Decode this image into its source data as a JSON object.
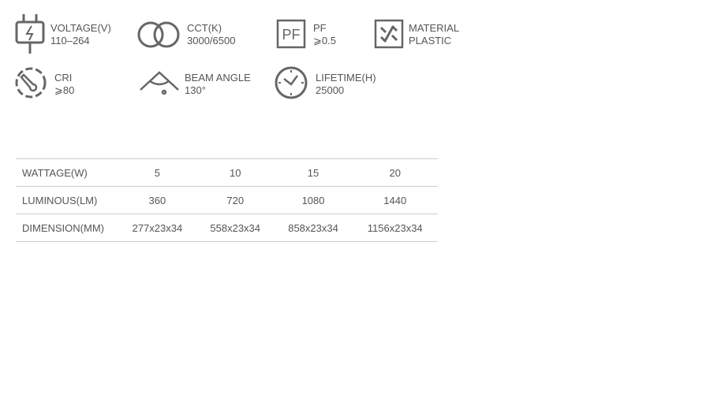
{
  "specs": [
    {
      "icon": "plug-icon",
      "label": "VOLTAGE(V)",
      "value": "110–264"
    },
    {
      "icon": "cct-rings-icon",
      "label": "CCT(K)",
      "value": "3000/6500"
    },
    {
      "icon": "pf-box-icon",
      "label": "PF",
      "value": "⩾0.5",
      "icon_text": "PF"
    },
    {
      "icon": "material-icon",
      "label": "MATERIAL",
      "value": "PLASTIC"
    },
    {
      "icon": "thermometer-icon",
      "label": "CRI",
      "value": "⩾80"
    },
    {
      "icon": "beam-angle-icon",
      "label": "BEAM ANGLE",
      "value": "130°"
    },
    {
      "icon": "clock-icon",
      "label": "LIFETIME(H)",
      "value": "25000"
    }
  ],
  "table": {
    "rows": [
      {
        "label": "WATTAGE(W)",
        "values": [
          "5",
          "10",
          "15",
          "20"
        ]
      },
      {
        "label": "LUMINOUS(LM)",
        "values": [
          "360",
          "720",
          "1080",
          "1440"
        ]
      },
      {
        "label": "DIMENSION(MM)",
        "values": [
          "277x23x34",
          "558x23x34",
          "858x23x34",
          "1156x23x34"
        ]
      }
    ]
  },
  "colors": {
    "text": "#555555",
    "icon": "#666666",
    "rule": "#cccccc"
  }
}
